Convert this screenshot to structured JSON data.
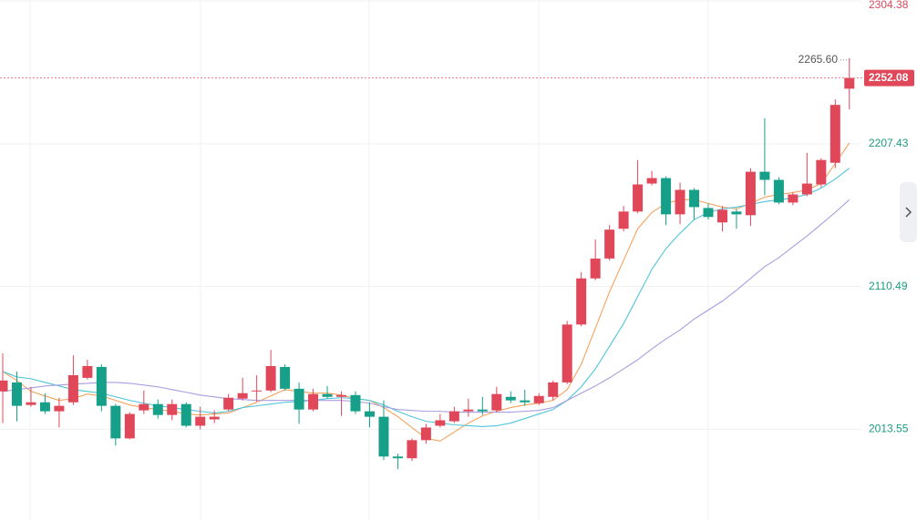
{
  "chart_data": {
    "type": "candlestick",
    "open": [
      2039.3,
      2045.4,
      2030.1,
      2031.9,
      2025.8,
      2031.9,
      2048.5,
      2055.9,
      2029.5,
      2007.4,
      2026.4,
      2030.7,
      2023.3,
      2030.7,
      2016.0,
      2020.3,
      2027.0,
      2034.4,
      2039.3,
      2039.9,
      2055.9,
      2041.1,
      2027.0,
      2037.5,
      2035.6,
      2036.8,
      2025.8,
      2022.1,
      1995.1,
      1993.9,
      2006.2,
      2016.0,
      2019.0,
      2025.8,
      2027.0,
      2026.4,
      2035.6,
      2033.2,
      2031.3,
      2035.6,
      2045.4,
      2084.7,
      2116.0,
      2129.5,
      2149.7,
      2161.4,
      2180.4,
      2184.1,
      2159.5,
      2176.1,
      2163.8,
      2154.0,
      2161.4,
      2158.9,
      2188.4,
      2182.9,
      2167.5,
      2173.0,
      2179.8,
      2194.5,
      2244.8
    ],
    "high": [
      2065.1,
      2052.8,
      2042.4,
      2038.1,
      2035.0,
      2063.8,
      2060.8,
      2057.7,
      2030.7,
      2025.2,
      2039.9,
      2033.8,
      2033.8,
      2031.9,
      2028.9,
      2026.4,
      2037.5,
      2048.5,
      2050.3,
      2067.5,
      2057.7,
      2045.4,
      2041.1,
      2043.0,
      2039.3,
      2039.3,
      2031.9,
      2033.2,
      1997.0,
      2007.4,
      2017.2,
      2024.0,
      2028.9,
      2034.4,
      2035.6,
      2042.4,
      2039.3,
      2040.5,
      2038.1,
      2046.7,
      2087.1,
      2120.3,
      2142.4,
      2152.2,
      2165.1,
      2196.4,
      2189.0,
      2185.3,
      2181.0,
      2177.3,
      2166.9,
      2165.1,
      2163.2,
      2190.8,
      2224.6,
      2184.7,
      2174.3,
      2201.3,
      2197.6,
      2237.5,
      2265.6
    ],
    "low": [
      2017.8,
      2019.0,
      2028.9,
      2024.0,
      2014.8,
      2030.1,
      2047.3,
      2025.8,
      2002.5,
      2006.8,
      2024.0,
      2020.9,
      2019.7,
      2014.8,
      2013.5,
      2017.8,
      2025.8,
      2033.2,
      2032.5,
      2038.7,
      2039.9,
      2017.2,
      2025.8,
      2034.4,
      2022.7,
      2024.0,
      2014.8,
      1992.7,
      1986.5,
      1992.1,
      2003.7,
      2014.8,
      2017.8,
      2022.1,
      2023.3,
      2025.2,
      2031.3,
      2029.5,
      2030.1,
      2033.2,
      2044.2,
      2083.5,
      2114.8,
      2128.3,
      2147.9,
      2160.2,
      2179.2,
      2152.2,
      2152.8,
      2155.9,
      2155.9,
      2147.9,
      2149.7,
      2151.6,
      2172.4,
      2166.3,
      2165.7,
      2171.8,
      2177.9,
      2190.8,
      2230.7
    ],
    "close": [
      2046.7,
      2029.5,
      2031.9,
      2025.8,
      2029.5,
      2050.3,
      2056.5,
      2029.5,
      2007.4,
      2024.0,
      2030.7,
      2023.3,
      2030.7,
      2016.0,
      2022.1,
      2022.1,
      2035.0,
      2038.1,
      2039.9,
      2056.5,
      2041.1,
      2027.0,
      2037.5,
      2035.6,
      2036.8,
      2025.8,
      2022.1,
      1995.1,
      1993.9,
      2006.2,
      2014.8,
      2019.7,
      2025.8,
      2027.0,
      2025.8,
      2037.5,
      2033.2,
      2031.9,
      2036.2,
      2045.4,
      2084.7,
      2116.0,
      2129.5,
      2149.1,
      2161.4,
      2179.8,
      2184.1,
      2159.5,
      2176.1,
      2164.4,
      2157.7,
      2162.6,
      2159.5,
      2188.4,
      2182.9,
      2167.5,
      2173.0,
      2180.4,
      2196.4,
      2233.8,
      2252.08
    ],
    "up_color": "#e0485a",
    "down_color": "#16a08a",
    "ma_lines": [
      {
        "color": "#f5a25d",
        "values": [
          2052.8,
          2046.7,
          2039.3,
          2036.2,
          2033.2,
          2034.4,
          2037.5,
          2036.2,
          2033.2,
          2030.1,
          2028.3,
          2027.0,
          2025.8,
          2024.0,
          2023.3,
          2024.0,
          2024.6,
          2028.3,
          2031.9,
          2036.2,
          2040.5,
          2039.3,
          2038.1,
          2038.1,
          2036.8,
          2034.4,
          2033.2,
          2028.3,
          2022.1,
          2014.8,
          2007.4,
          2005.6,
          2011.7,
          2017.8,
          2022.7,
          2025.8,
          2028.3,
          2030.1,
          2031.3,
          2033.2,
          2040.5,
          2057.7,
          2082.2,
          2106.8,
          2128.3,
          2149.7,
          2160.8,
          2166.9,
          2169.4,
          2169.4,
          2166.9,
          2164.4,
          2163.2,
          2166.9,
          2171.2,
          2173.0,
          2174.3,
          2176.1,
          2180.4,
          2193.9,
          2208.0
        ]
      },
      {
        "color": "#4ec5da",
        "values": [
          2052.8,
          2049.1,
          2047.9,
          2045.4,
          2043.0,
          2040.5,
          2039.3,
          2038.1,
          2035.6,
          2033.2,
          2031.3,
          2029.5,
          2028.3,
          2027.0,
          2025.8,
          2024.6,
          2025.8,
          2028.3,
          2029.5,
          2030.7,
          2031.9,
          2032.5,
          2033.2,
          2034.4,
          2035.0,
          2034.4,
          2033.2,
          2030.1,
          2025.8,
          2022.1,
          2019.0,
          2017.8,
          2016.6,
          2016.0,
          2015.4,
          2016.0,
          2017.8,
          2020.9,
          2024.0,
          2027.0,
          2033.2,
          2042.4,
          2054.6,
          2069.9,
          2085.3,
          2103.7,
          2122.1,
          2136.2,
          2146.7,
          2155.9,
          2160.8,
          2163.2,
          2164.4,
          2166.3,
          2168.1,
          2169.4,
          2170.6,
          2173.0,
          2177.3,
          2183.5,
          2190.8
        ]
      },
      {
        "color": "#a99ddf",
        "values": [
          2039.3,
          2040.5,
          2041.7,
          2043.0,
          2043.6,
          2044.2,
          2044.8,
          2045.4,
          2045.4,
          2044.8,
          2043.6,
          2042.4,
          2040.5,
          2038.7,
          2036.8,
          2035.6,
          2034.4,
          2033.8,
          2033.2,
          2033.2,
          2033.2,
          2033.2,
          2033.2,
          2033.2,
          2033.2,
          2032.5,
          2031.3,
          2028.9,
          2027.0,
          2026.4,
          2025.8,
          2025.8,
          2025.2,
          2025.2,
          2025.2,
          2025.2,
          2025.2,
          2025.8,
          2026.4,
          2028.3,
          2033.2,
          2038.1,
          2043.0,
          2048.5,
          2054.6,
          2060.8,
          2068.1,
          2074.9,
          2081.0,
          2088.4,
          2094.5,
          2100.6,
          2108.0,
          2116.0,
          2124.0,
          2130.1,
          2137.5,
          2144.8,
          2152.8,
          2160.8,
          2169.4
        ]
      }
    ],
    "ylim": [
      1952.0,
      2305.0
    ],
    "yticks": [
      2304.38,
      2207.43,
      2110.49,
      2013.55
    ],
    "grid": true,
    "annotations": [
      {
        "value": 2265.6,
        "label": "2265.60"
      }
    ]
  }
}
